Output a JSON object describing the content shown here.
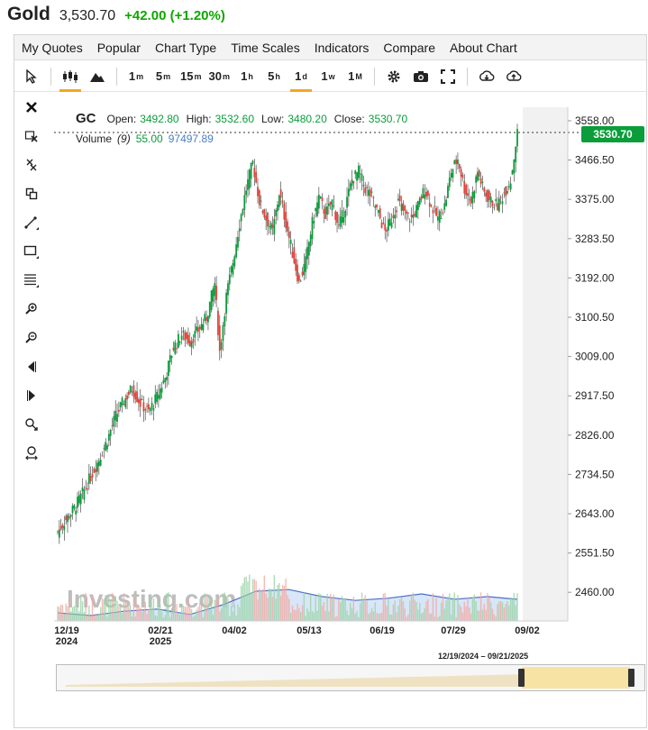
{
  "header": {
    "name": "Gold",
    "price": "3,530.70",
    "change": "+42.00 (+1.20%)"
  },
  "menu": [
    "My Quotes",
    "Popular",
    "Chart Type",
    "Time Scales",
    "Indicators",
    "Compare",
    "About Chart"
  ],
  "timeframes": [
    {
      "base": "1",
      "sup": "m"
    },
    {
      "base": "5",
      "sup": "m"
    },
    {
      "base": "15",
      "sup": "m"
    },
    {
      "base": "30",
      "sup": "m"
    },
    {
      "base": "1",
      "sup": "h"
    },
    {
      "base": "5",
      "sup": "h"
    },
    {
      "base": "1",
      "sup": "d"
    },
    {
      "base": "1",
      "sup": "w"
    },
    {
      "base": "1",
      "sup": "M"
    }
  ],
  "legend": {
    "symbol": "GC",
    "open_label": "Open:",
    "open": "3492.80",
    "high_label": "High:",
    "high": "3532.60",
    "low_label": "Low:",
    "low": "3480.20",
    "close_label": "Close:",
    "close": "3530.70",
    "volume_label": "Volume",
    "volume_period": "(9)",
    "volume_value": "55.00",
    "volume_ma": "97497.89"
  },
  "last_price_tag": "3530.70",
  "watermark": "Investing.com",
  "navigator_range": "12/19/2024 – 09/21/2025",
  "colors": {
    "up": "#0a9d3a",
    "down": "#e0443a",
    "volume": "#aac8ec",
    "last_tag": "#0a9d3a",
    "change": "#0ea600"
  },
  "chart_data": {
    "type": "candlestick",
    "y_ticks": [
      "3558.00",
      "3466.50",
      "3375.00",
      "3283.50",
      "3192.00",
      "3100.50",
      "3009.00",
      "2917.50",
      "2826.00",
      "2734.50",
      "2643.00",
      "2551.50",
      "2460.00"
    ],
    "x_ticks": [
      {
        "label": "12/19",
        "sub": "2024"
      },
      {
        "label": "02/21",
        "sub": "2025"
      },
      {
        "label": "04/02",
        "sub": ""
      },
      {
        "label": "05/13",
        "sub": ""
      },
      {
        "label": "06/19",
        "sub": ""
      },
      {
        "label": "07/29",
        "sub": ""
      },
      {
        "label": "09/02",
        "sub": ""
      }
    ],
    "ylim": [
      2460,
      3558
    ],
    "close_path": [
      [
        0,
        2600
      ],
      [
        5,
        2630
      ],
      [
        10,
        2655
      ],
      [
        15,
        2690
      ],
      [
        20,
        2730
      ],
      [
        25,
        2770
      ],
      [
        30,
        2815
      ],
      [
        35,
        2870
      ],
      [
        40,
        2905
      ],
      [
        45,
        2935
      ],
      [
        50,
        2900
      ],
      [
        55,
        2880
      ],
      [
        60,
        2915
      ],
      [
        65,
        2960
      ],
      [
        70,
        3030
      ],
      [
        75,
        3060
      ],
      [
        80,
        3045
      ],
      [
        85,
        3070
      ],
      [
        90,
        3100
      ],
      [
        95,
        3180
      ],
      [
        98,
        3020
      ],
      [
        102,
        3150
      ],
      [
        106,
        3230
      ],
      [
        110,
        3320
      ],
      [
        114,
        3400
      ],
      [
        118,
        3460
      ],
      [
        122,
        3370
      ],
      [
        126,
        3330
      ],
      [
        130,
        3300
      ],
      [
        134,
        3390
      ],
      [
        138,
        3320
      ],
      [
        142,
        3250
      ],
      [
        146,
        3180
      ],
      [
        150,
        3230
      ],
      [
        154,
        3320
      ],
      [
        158,
        3380
      ],
      [
        162,
        3340
      ],
      [
        166,
        3370
      ],
      [
        170,
        3310
      ],
      [
        174,
        3360
      ],
      [
        178,
        3420
      ],
      [
        182,
        3440
      ],
      [
        186,
        3400
      ],
      [
        190,
        3380
      ],
      [
        194,
        3340
      ],
      [
        198,
        3300
      ],
      [
        202,
        3330
      ],
      [
        206,
        3370
      ],
      [
        210,
        3340
      ],
      [
        214,
        3330
      ],
      [
        218,
        3360
      ],
      [
        222,
        3400
      ],
      [
        226,
        3360
      ],
      [
        230,
        3330
      ],
      [
        234,
        3360
      ],
      [
        238,
        3440
      ],
      [
        242,
        3470
      ],
      [
        246,
        3400
      ],
      [
        250,
        3370
      ],
      [
        254,
        3440
      ],
      [
        258,
        3390
      ],
      [
        262,
        3370
      ],
      [
        266,
        3360
      ],
      [
        270,
        3390
      ],
      [
        274,
        3420
      ],
      [
        278,
        3530
      ]
    ],
    "volume_ma": [
      [
        0,
        0.15
      ],
      [
        20,
        0.1
      ],
      [
        40,
        0.18
      ],
      [
        60,
        0.22
      ],
      [
        80,
        0.12
      ],
      [
        100,
        0.3
      ],
      [
        120,
        0.55
      ],
      [
        140,
        0.58
      ],
      [
        160,
        0.45
      ],
      [
        180,
        0.38
      ],
      [
        200,
        0.42
      ],
      [
        220,
        0.5
      ],
      [
        240,
        0.4
      ],
      [
        260,
        0.45
      ],
      [
        278,
        0.4
      ]
    ]
  }
}
